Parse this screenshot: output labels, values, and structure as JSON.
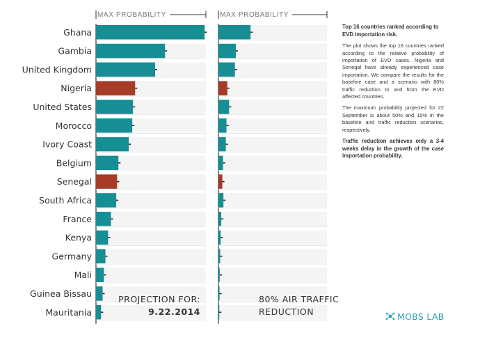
{
  "chart_data": [
    {
      "type": "bar",
      "orientation": "horizontal",
      "title": "PROJECTION FOR:",
      "title_date": "9.22.2014",
      "xlabel": "MAX PROBABILITY",
      "xlim": [
        0,
        0.5
      ],
      "grid": true,
      "categories": [
        "Ghana",
        "Gambia",
        "United Kingdom",
        "Nigeria",
        "United States",
        "Morocco",
        "Ivory Coast",
        "Belgium",
        "Senegal",
        "South Africa",
        "France",
        "Kenya",
        "Germany",
        "Mali",
        "Guinea Bissau",
        "Mauritania"
      ],
      "values": [
        0.494,
        0.314,
        0.269,
        0.178,
        0.168,
        0.165,
        0.149,
        0.102,
        0.096,
        0.092,
        0.068,
        0.055,
        0.043,
        0.036,
        0.03,
        0.023
      ],
      "highlight": [
        "Nigeria",
        "Senegal"
      ]
    },
    {
      "type": "bar",
      "orientation": "horizontal",
      "title": "80% AIR TRAFFIC",
      "title_line2": "REDUCTION",
      "xlabel": "MAX PROBABILITY",
      "xlim": [
        0,
        0.5
      ],
      "grid": true,
      "categories": [
        "Ghana",
        "Gambia",
        "United Kingdom",
        "Nigeria",
        "United States",
        "Morocco",
        "Ivory Coast",
        "Belgium",
        "Senegal",
        "South Africa",
        "France",
        "Kenya",
        "Germany",
        "Mali",
        "Guinea Bissau",
        "Mauritania"
      ],
      "values": [
        0.148,
        0.08,
        0.076,
        0.041,
        0.049,
        0.037,
        0.034,
        0.021,
        0.018,
        0.023,
        0.013,
        0.01,
        0.008,
        0.006,
        0.005,
        0.004
      ],
      "highlight": [
        "Nigeria",
        "Senegal"
      ]
    }
  ],
  "colors": {
    "bar": "#168e93",
    "highlight": "#a63c27",
    "axis": "#333333",
    "grid": "#e0e0e0",
    "logo": "#2aa0b4"
  },
  "description": {
    "title": "Top 16 countries ranked according to EVD importation risk.",
    "paragraph1": "The plot shows the top 16 countries ranked according to the relative probability of importation of EVD cases. Nigeria and Senegal have already experienced case importation. We compare the results for the baseline case and a scenario with 80% traffic reduction to and from the EVD affected countries.",
    "paragraph2": "The maximum probability projected for 22 September is about 50% and 15% in the baseline and traffic reduction scenarios, respectively.",
    "emphasis": "Traffic reduction achieves only a 3-4 weeks delay in the growth of the case importation probability."
  },
  "logo": {
    "text": "MOBS LAB",
    "icon": "network-node-icon"
  }
}
